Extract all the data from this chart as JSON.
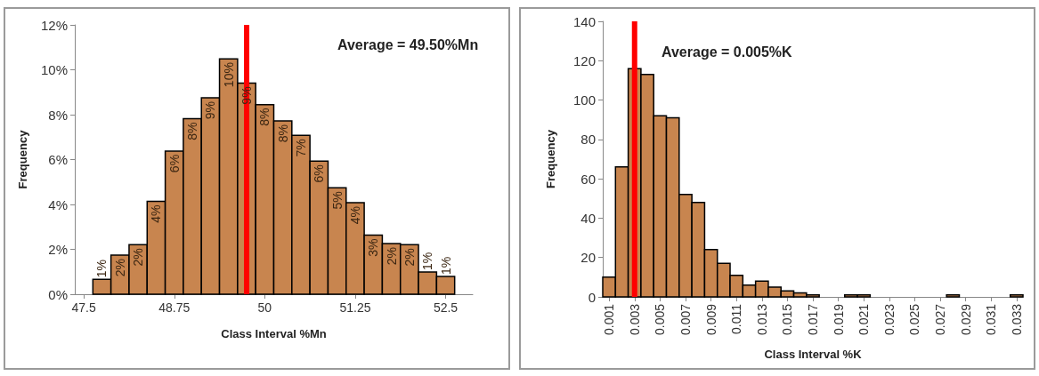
{
  "chart_data": [
    {
      "type": "histogram",
      "xlabel": "Class Interval %Mn",
      "ylabel": "Frequency",
      "bins": [
        47.625,
        47.875,
        48.125,
        48.375,
        48.625,
        48.875,
        49.125,
        49.375,
        49.625,
        49.875,
        50.125,
        50.375,
        50.625,
        50.875,
        51.125,
        51.375,
        51.625,
        51.875,
        52.125,
        52.375,
        52.625
      ],
      "values": [
        0.66,
        1.74,
        2.21,
        4.14,
        6.38,
        7.82,
        8.75,
        10.49,
        9.41,
        8.45,
        7.72,
        7.08,
        5.93,
        4.74,
        4.08,
        2.63,
        2.26,
        2.21,
        0.99,
        0.79
      ],
      "value_labels": [
        "1%",
        "2%",
        "2%",
        "4%",
        "6%",
        "8%",
        "9%",
        "10%",
        "9%",
        "8%",
        "8%",
        "7%",
        "6%",
        "5%",
        "4%",
        "3%",
        "2%",
        "2%",
        "1%",
        "1%"
      ],
      "color": "#c8854f",
      "xlim": [
        47.375,
        52.875
      ],
      "xticks": [
        47.5,
        48.75,
        50,
        51.25,
        52.5
      ],
      "ylim": [
        0,
        12
      ],
      "yticks": [
        {
          "value": 0,
          "label": "0%"
        },
        {
          "value": 2,
          "label": "2%"
        },
        {
          "value": 4,
          "label": "4%"
        },
        {
          "value": 6,
          "label": "6%"
        },
        {
          "value": 8,
          "label": "8%"
        },
        {
          "value": 10,
          "label": "10%"
        },
        {
          "value": 12,
          "label": "12%"
        }
      ],
      "ref_lines": [
        {
          "axis": "x",
          "value": 49.75,
          "color": "#ff0000"
        }
      ],
      "annotations": [
        "Average = 49.50%Mn"
      ]
    },
    {
      "type": "bar",
      "xlabel": "Class Interval %K",
      "ylabel": "Frequency",
      "x": [
        0.001,
        0.002,
        0.003,
        0.004,
        0.005,
        0.006,
        0.007,
        0.008,
        0.009,
        0.01,
        0.011,
        0.012,
        0.013,
        0.014,
        0.015,
        0.016,
        0.017,
        0.018,
        0.019,
        0.02,
        0.021,
        0.022,
        0.023,
        0.024,
        0.025,
        0.026,
        0.027,
        0.028,
        0.029,
        0.03,
        0.031,
        0.032,
        0.033
      ],
      "values": [
        10,
        66,
        116,
        113,
        92,
        91,
        52,
        48,
        24,
        17,
        11,
        6,
        8,
        5,
        3,
        2,
        1,
        0,
        0,
        1,
        1,
        0,
        0,
        0,
        0,
        0,
        0,
        1,
        0,
        0,
        0,
        0,
        1
      ],
      "color": "#c8854f",
      "xlim": [
        0.0005,
        0.0335
      ],
      "xticks": [
        0.001,
        0.003,
        0.005,
        0.007,
        0.009,
        0.011,
        0.013,
        0.015,
        0.017,
        0.019,
        0.021,
        0.023,
        0.025,
        0.027,
        0.029,
        0.031,
        0.033
      ],
      "ylim": [
        0,
        140
      ],
      "yticks": [
        0,
        20,
        40,
        60,
        80,
        100,
        120,
        140
      ],
      "ref_lines": [
        {
          "axis": "x",
          "value": 0.003,
          "color": "#ff0000"
        }
      ],
      "annotations": [
        "Average = 0.005%K"
      ]
    }
  ]
}
